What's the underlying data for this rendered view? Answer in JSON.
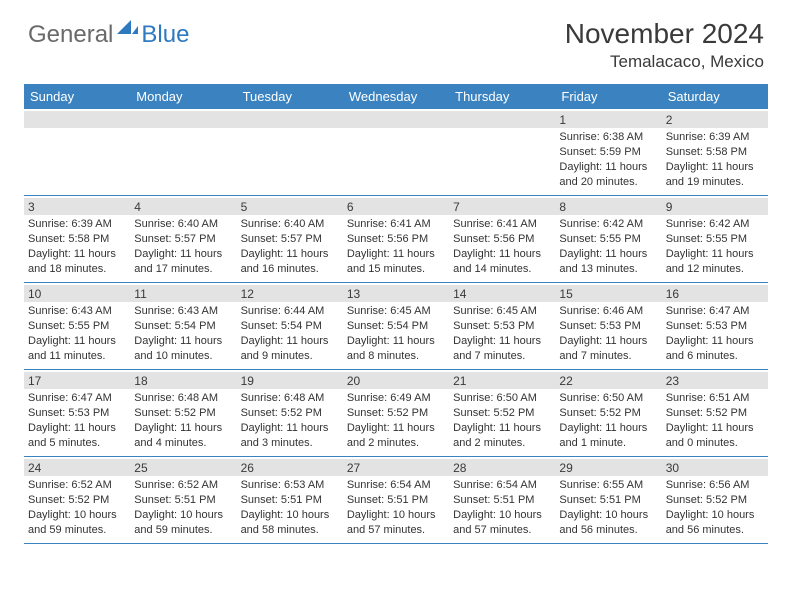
{
  "logo": {
    "general": "General",
    "blue": "Blue"
  },
  "title": "November 2024",
  "location": "Temalacaco, Mexico",
  "dow": [
    "Sunday",
    "Monday",
    "Tuesday",
    "Wednesday",
    "Thursday",
    "Friday",
    "Saturday"
  ],
  "style": {
    "accent_color": "#3b83c0",
    "band_color": "#e3e3e3",
    "text_color": "#333333",
    "logo_grey": "#6a6a6a",
    "logo_blue": "#2f7abf",
    "title_fontsize": 28,
    "location_fontsize": 17,
    "dow_fontsize": 13,
    "cell_fontsize": 11
  },
  "weeks": [
    [
      {
        "n": "",
        "lines": []
      },
      {
        "n": "",
        "lines": []
      },
      {
        "n": "",
        "lines": []
      },
      {
        "n": "",
        "lines": []
      },
      {
        "n": "",
        "lines": []
      },
      {
        "n": "1",
        "lines": [
          "Sunrise: 6:38 AM",
          "Sunset: 5:59 PM",
          "Daylight: 11 hours and 20 minutes."
        ]
      },
      {
        "n": "2",
        "lines": [
          "Sunrise: 6:39 AM",
          "Sunset: 5:58 PM",
          "Daylight: 11 hours and 19 minutes."
        ]
      }
    ],
    [
      {
        "n": "3",
        "lines": [
          "Sunrise: 6:39 AM",
          "Sunset: 5:58 PM",
          "Daylight: 11 hours and 18 minutes."
        ]
      },
      {
        "n": "4",
        "lines": [
          "Sunrise: 6:40 AM",
          "Sunset: 5:57 PM",
          "Daylight: 11 hours and 17 minutes."
        ]
      },
      {
        "n": "5",
        "lines": [
          "Sunrise: 6:40 AM",
          "Sunset: 5:57 PM",
          "Daylight: 11 hours and 16 minutes."
        ]
      },
      {
        "n": "6",
        "lines": [
          "Sunrise: 6:41 AM",
          "Sunset: 5:56 PM",
          "Daylight: 11 hours and 15 minutes."
        ]
      },
      {
        "n": "7",
        "lines": [
          "Sunrise: 6:41 AM",
          "Sunset: 5:56 PM",
          "Daylight: 11 hours and 14 minutes."
        ]
      },
      {
        "n": "8",
        "lines": [
          "Sunrise: 6:42 AM",
          "Sunset: 5:55 PM",
          "Daylight: 11 hours and 13 minutes."
        ]
      },
      {
        "n": "9",
        "lines": [
          "Sunrise: 6:42 AM",
          "Sunset: 5:55 PM",
          "Daylight: 11 hours and 12 minutes."
        ]
      }
    ],
    [
      {
        "n": "10",
        "lines": [
          "Sunrise: 6:43 AM",
          "Sunset: 5:55 PM",
          "Daylight: 11 hours and 11 minutes."
        ]
      },
      {
        "n": "11",
        "lines": [
          "Sunrise: 6:43 AM",
          "Sunset: 5:54 PM",
          "Daylight: 11 hours and 10 minutes."
        ]
      },
      {
        "n": "12",
        "lines": [
          "Sunrise: 6:44 AM",
          "Sunset: 5:54 PM",
          "Daylight: 11 hours and 9 minutes."
        ]
      },
      {
        "n": "13",
        "lines": [
          "Sunrise: 6:45 AM",
          "Sunset: 5:54 PM",
          "Daylight: 11 hours and 8 minutes."
        ]
      },
      {
        "n": "14",
        "lines": [
          "Sunrise: 6:45 AM",
          "Sunset: 5:53 PM",
          "Daylight: 11 hours and 7 minutes."
        ]
      },
      {
        "n": "15",
        "lines": [
          "Sunrise: 6:46 AM",
          "Sunset: 5:53 PM",
          "Daylight: 11 hours and 7 minutes."
        ]
      },
      {
        "n": "16",
        "lines": [
          "Sunrise: 6:47 AM",
          "Sunset: 5:53 PM",
          "Daylight: 11 hours and 6 minutes."
        ]
      }
    ],
    [
      {
        "n": "17",
        "lines": [
          "Sunrise: 6:47 AM",
          "Sunset: 5:53 PM",
          "Daylight: 11 hours and 5 minutes."
        ]
      },
      {
        "n": "18",
        "lines": [
          "Sunrise: 6:48 AM",
          "Sunset: 5:52 PM",
          "Daylight: 11 hours and 4 minutes."
        ]
      },
      {
        "n": "19",
        "lines": [
          "Sunrise: 6:48 AM",
          "Sunset: 5:52 PM",
          "Daylight: 11 hours and 3 minutes."
        ]
      },
      {
        "n": "20",
        "lines": [
          "Sunrise: 6:49 AM",
          "Sunset: 5:52 PM",
          "Daylight: 11 hours and 2 minutes."
        ]
      },
      {
        "n": "21",
        "lines": [
          "Sunrise: 6:50 AM",
          "Sunset: 5:52 PM",
          "Daylight: 11 hours and 2 minutes."
        ]
      },
      {
        "n": "22",
        "lines": [
          "Sunrise: 6:50 AM",
          "Sunset: 5:52 PM",
          "Daylight: 11 hours and 1 minute."
        ]
      },
      {
        "n": "23",
        "lines": [
          "Sunrise: 6:51 AM",
          "Sunset: 5:52 PM",
          "Daylight: 11 hours and 0 minutes."
        ]
      }
    ],
    [
      {
        "n": "24",
        "lines": [
          "Sunrise: 6:52 AM",
          "Sunset: 5:52 PM",
          "Daylight: 10 hours and 59 minutes."
        ]
      },
      {
        "n": "25",
        "lines": [
          "Sunrise: 6:52 AM",
          "Sunset: 5:51 PM",
          "Daylight: 10 hours and 59 minutes."
        ]
      },
      {
        "n": "26",
        "lines": [
          "Sunrise: 6:53 AM",
          "Sunset: 5:51 PM",
          "Daylight: 10 hours and 58 minutes."
        ]
      },
      {
        "n": "27",
        "lines": [
          "Sunrise: 6:54 AM",
          "Sunset: 5:51 PM",
          "Daylight: 10 hours and 57 minutes."
        ]
      },
      {
        "n": "28",
        "lines": [
          "Sunrise: 6:54 AM",
          "Sunset: 5:51 PM",
          "Daylight: 10 hours and 57 minutes."
        ]
      },
      {
        "n": "29",
        "lines": [
          "Sunrise: 6:55 AM",
          "Sunset: 5:51 PM",
          "Daylight: 10 hours and 56 minutes."
        ]
      },
      {
        "n": "30",
        "lines": [
          "Sunrise: 6:56 AM",
          "Sunset: 5:52 PM",
          "Daylight: 10 hours and 56 minutes."
        ]
      }
    ]
  ]
}
